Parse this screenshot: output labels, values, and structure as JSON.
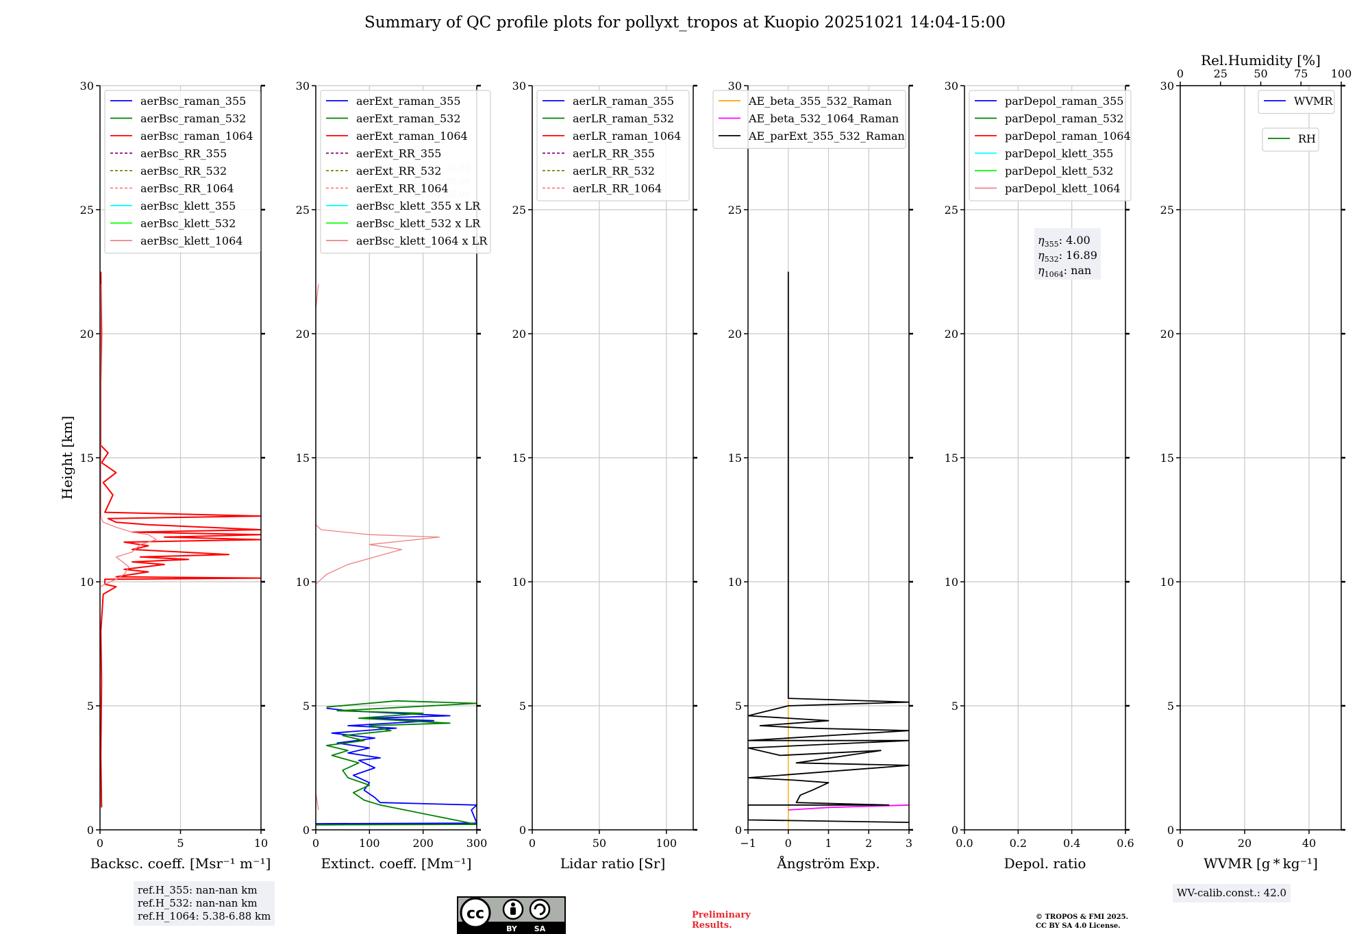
{
  "title": "Summary of QC profile plots for pollyxt_tropos at Kuopio 20251021 14:04-15:00",
  "ylabel": "Height [km]",
  "footer": {
    "ref_heights": [
      "ref.H_355: nan-nan km",
      "ref.H_532: nan-nan km",
      "ref.H_1064: 5.38-6.88 km"
    ],
    "wv_calib": "WV-calib.const.: 42.0",
    "preliminary": [
      "Preliminary",
      "Results."
    ],
    "copyright": [
      "© TROPOS & FMI 2025.",
      "CC BY SA 4.0 License."
    ],
    "cc_badge": {
      "cc": "cc",
      "by": "BY",
      "sa": "SA"
    }
  },
  "colors": {
    "blue": "#0000ff",
    "green": "#008000",
    "red": "#ff0000",
    "purple": "#800080",
    "olive": "#808000",
    "salmon": "#fa8072",
    "cyan": "#00ffff",
    "lime": "#00ff00",
    "lightcoral": "#f08080",
    "orange": "#ffa500",
    "magenta": "#ff00ff",
    "black": "#000000"
  },
  "chart_data": [
    {
      "id": "bsc",
      "type": "line",
      "xlabel": "Backsc. coeff. [Msr⁻¹ m⁻¹]",
      "xlim": [
        0,
        10
      ],
      "xticks": [
        0,
        5,
        10
      ],
      "ylim": [
        0,
        30
      ],
      "yticks": [
        0,
        5,
        10,
        15,
        20,
        25,
        30
      ],
      "legend": [
        {
          "label": "aerBsc_raman_355",
          "color": "blue",
          "dash": false
        },
        {
          "label": "aerBsc_raman_532",
          "color": "green",
          "dash": false
        },
        {
          "label": "aerBsc_raman_1064",
          "color": "red",
          "dash": false
        },
        {
          "label": "aerBsc_RR_355",
          "color": "purple",
          "dash": true
        },
        {
          "label": "aerBsc_RR_532",
          "color": "olive",
          "dash": true
        },
        {
          "label": "aerBsc_RR_1064",
          "color": "salmon",
          "dash": true
        },
        {
          "label": "aerBsc_klett_355",
          "color": "cyan",
          "dash": false
        },
        {
          "label": "aerBsc_klett_532",
          "color": "lime",
          "dash": false
        },
        {
          "label": "aerBsc_klett_1064",
          "color": "lightcoral",
          "dash": false
        }
      ],
      "series": [
        {
          "name": "aerBsc_raman_1064",
          "color": "red",
          "width": 2,
          "points": [
            [
              0.1,
              0.9
            ],
            [
              0.05,
              3
            ],
            [
              0.1,
              6
            ],
            [
              0.05,
              8
            ],
            [
              0.2,
              9.5
            ],
            [
              1,
              9.8
            ],
            [
              0.3,
              9.9
            ],
            [
              0.3,
              10.1
            ],
            [
              10,
              10.15
            ],
            [
              1,
              10.2
            ],
            [
              3,
              10.4
            ],
            [
              1.5,
              10.5
            ],
            [
              4,
              10.7
            ],
            [
              2,
              10.8
            ],
            [
              5.5,
              10.9
            ],
            [
              2.5,
              11
            ],
            [
              8,
              11.1
            ],
            [
              2,
              11.3
            ],
            [
              3,
              11.45
            ],
            [
              1.5,
              11.6
            ],
            [
              10,
              11.7
            ],
            [
              4,
              11.8
            ],
            [
              10,
              11.9
            ],
            [
              2,
              12
            ],
            [
              10,
              12.1
            ],
            [
              3,
              12.3
            ],
            [
              1,
              12.4
            ],
            [
              0.5,
              12.55
            ],
            [
              10,
              12.65
            ],
            [
              0.3,
              12.8
            ],
            [
              0.8,
              13.5
            ],
            [
              0.2,
              14
            ],
            [
              1,
              14.4
            ],
            [
              0.1,
              14.8
            ],
            [
              0.5,
              15.2
            ],
            [
              0.05,
              15.5
            ],
            [
              0.05,
              18
            ],
            [
              0.1,
              20
            ],
            [
              0.05,
              22.5
            ]
          ]
        },
        {
          "name": "aerBsc_klett_1064",
          "color": "lightcoral",
          "width": 1.3,
          "points": [
            [
              0.05,
              9.8
            ],
            [
              0.3,
              9.9
            ],
            [
              1,
              10.1
            ],
            [
              1.5,
              10.3
            ],
            [
              1.8,
              10.6
            ],
            [
              1,
              11
            ],
            [
              2,
              11.2
            ],
            [
              2.5,
              11.5
            ],
            [
              3.5,
              11.7
            ],
            [
              3,
              11.9
            ],
            [
              2,
              12
            ],
            [
              1,
              12.2
            ],
            [
              0.2,
              12.4
            ],
            [
              0.05,
              12.6
            ],
            [
              0.05,
              22
            ]
          ]
        }
      ]
    },
    {
      "id": "ext",
      "type": "line",
      "xlabel": "Extinct. coeff. [Mm⁻¹]",
      "xlim": [
        0,
        300
      ],
      "xticks": [
        0,
        100,
        200,
        300
      ],
      "ylim": [
        0,
        30
      ],
      "yticks": [
        0,
        5,
        10,
        15,
        20,
        25,
        30
      ],
      "legend": [
        {
          "label": "aerExt_raman_355",
          "color": "blue",
          "dash": false
        },
        {
          "label": "aerExt_raman_532",
          "color": "green",
          "dash": false
        },
        {
          "label": "aerExt_raman_1064",
          "color": "red",
          "dash": false
        },
        {
          "label": "aerExt_RR_355",
          "color": "purple",
          "dash": true
        },
        {
          "label": "aerExt_RR_532",
          "color": "olive",
          "dash": true
        },
        {
          "label": "aerExt_RR_1064",
          "color": "salmon",
          "dash": true
        },
        {
          "label": "aerBsc_klett_355 x LR",
          "color": "cyan",
          "dash": false
        },
        {
          "label": "aerBsc_klett_532 x LR",
          "color": "lime",
          "dash": false
        },
        {
          "label": "aerBsc_klett_1064 x LR",
          "color": "lightcoral",
          "dash": false
        }
      ],
      "faint_labels": [
        "LR355: 50.00",
        "LR532: 50.00",
        "LR1064: 50.00"
      ],
      "series": [
        {
          "name": "aerExt_raman_355",
          "color": "blue",
          "width": 1.8,
          "points": [
            [
              300,
              0.22
            ],
            [
              0,
              0.25
            ],
            [
              300,
              0.27
            ],
            [
              290,
              0.8
            ],
            [
              300,
              1
            ],
            [
              120,
              1.1
            ],
            [
              110,
              1.3
            ],
            [
              90,
              1.6
            ],
            [
              100,
              1.9
            ],
            [
              70,
              2.2
            ],
            [
              110,
              2.5
            ],
            [
              80,
              2.8
            ],
            [
              120,
              2.9
            ],
            [
              60,
              3.1
            ],
            [
              100,
              3.3
            ],
            [
              40,
              3.5
            ],
            [
              110,
              3.7
            ],
            [
              30,
              3.9
            ],
            [
              150,
              4.1
            ],
            [
              60,
              4.2
            ],
            [
              220,
              4.4
            ],
            [
              100,
              4.5
            ],
            [
              250,
              4.6
            ],
            [
              150,
              4.7
            ],
            [
              60,
              4.8
            ],
            [
              20,
              4.9
            ]
          ]
        },
        {
          "name": "aerExt_raman_532",
          "color": "green",
          "width": 1.8,
          "points": [
            [
              0,
              0.2
            ],
            [
              300,
              0.22
            ],
            [
              120,
              1
            ],
            [
              90,
              1.2
            ],
            [
              70,
              1.5
            ],
            [
              100,
              1.8
            ],
            [
              60,
              2.1
            ],
            [
              50,
              2.4
            ],
            [
              80,
              2.7
            ],
            [
              30,
              3
            ],
            [
              60,
              3.2
            ],
            [
              20,
              3.4
            ],
            [
              90,
              3.6
            ],
            [
              50,
              3.8
            ],
            [
              140,
              4
            ],
            [
              100,
              4.2
            ],
            [
              250,
              4.3
            ],
            [
              80,
              4.5
            ],
            [
              200,
              4.7
            ],
            [
              40,
              4.8
            ],
            [
              300,
              5.1
            ],
            [
              150,
              5.2
            ],
            [
              20,
              4.95
            ]
          ]
        },
        {
          "name": "aerBsc_klett_1064 x LR",
          "color": "lightcoral",
          "width": 1.3,
          "points": [
            [
              5,
              0.8
            ],
            [
              0,
              1.5
            ],
            [
              0,
              9.9
            ],
            [
              20,
              10.3
            ],
            [
              60,
              10.7
            ],
            [
              110,
              11
            ],
            [
              160,
              11.3
            ],
            [
              100,
              11.5
            ],
            [
              230,
              11.8
            ],
            [
              100,
              11.9
            ],
            [
              10,
              12.1
            ],
            [
              0,
              12.3
            ],
            [
              0,
              21
            ],
            [
              5,
              22
            ]
          ]
        }
      ]
    },
    {
      "id": "lr",
      "type": "line",
      "xlabel": "Lidar ratio [Sr]",
      "xlim": [
        0,
        120
      ],
      "xticks": [
        0,
        50,
        100
      ],
      "ylim": [
        0,
        30
      ],
      "yticks": [
        0,
        5,
        10,
        15,
        20,
        25,
        30
      ],
      "legend": [
        {
          "label": "aerLR_raman_355",
          "color": "blue",
          "dash": false
        },
        {
          "label": "aerLR_raman_532",
          "color": "green",
          "dash": false
        },
        {
          "label": "aerLR_raman_1064",
          "color": "red",
          "dash": false
        },
        {
          "label": "aerLR_RR_355",
          "color": "purple",
          "dash": true
        },
        {
          "label": "aerLR_RR_532",
          "color": "olive",
          "dash": true
        },
        {
          "label": "aerLR_RR_1064",
          "color": "salmon",
          "dash": true
        }
      ],
      "series": []
    },
    {
      "id": "ae",
      "type": "line",
      "xlabel": "Ångström Exp.",
      "xlim": [
        -1,
        3
      ],
      "xticks": [
        -1,
        0,
        1,
        2,
        3
      ],
      "ylim": [
        0,
        30
      ],
      "yticks": [
        0,
        5,
        10,
        15,
        20,
        25,
        30
      ],
      "legend": [
        {
          "label": "AE_beta_355_532_Raman",
          "color": "orange",
          "dash": false
        },
        {
          "label": "AE_beta_532_1064_Raman",
          "color": "magenta",
          "dash": false
        },
        {
          "label": "AE_parExt_355_532_Raman",
          "color": "black",
          "dash": false
        }
      ],
      "series": [
        {
          "name": "AE_beta_355_532_Raman",
          "color": "orange",
          "width": 1.3,
          "points": [
            [
              0,
              0
            ],
            [
              0,
              5.2
            ]
          ]
        },
        {
          "name": "AE_beta_532_1064_Raman",
          "color": "magenta",
          "width": 1.8,
          "points": [
            [
              0,
              0.8
            ],
            [
              1,
              0.9
            ],
            [
              3,
              1
            ]
          ]
        },
        {
          "name": "AE_parExt_355_532_Raman",
          "color": "black",
          "width": 1.8,
          "points": [
            [
              3,
              0.3
            ],
            [
              -1,
              0.4
            ],
            [
              -1,
              1.0
            ],
            [
              2.5,
              1.0
            ],
            [
              0.2,
              1.1
            ],
            [
              0.3,
              1.4
            ],
            [
              0.6,
              1.6
            ],
            [
              1,
              1.9
            ],
            [
              0.2,
              2.0
            ],
            [
              -1,
              2.1
            ],
            [
              3,
              2.6
            ],
            [
              0.2,
              2.7
            ],
            [
              2.3,
              3.2
            ],
            [
              -0.2,
              3.0
            ],
            [
              -1,
              3.3
            ],
            [
              3,
              3.6
            ],
            [
              -1,
              3.6
            ],
            [
              3,
              4.0
            ],
            [
              0.5,
              4.1
            ],
            [
              -0.7,
              4.2
            ],
            [
              1,
              4.4
            ],
            [
              -1,
              4.6
            ],
            [
              0,
              5.0
            ],
            [
              3,
              5.15
            ],
            [
              0,
              5.3
            ],
            [
              0,
              22.5
            ]
          ]
        }
      ]
    },
    {
      "id": "depol",
      "type": "line",
      "xlabel": "Depol. ratio",
      "xlim": [
        0,
        0.6
      ],
      "xticks": [
        "0.0",
        "0.2",
        "0.4",
        "0.6"
      ],
      "ylim": [
        0,
        30
      ],
      "yticks": [
        0,
        5,
        10,
        15,
        20,
        25,
        30
      ],
      "legend": [
        {
          "label": "parDepol_raman_355",
          "color": "blue",
          "dash": false
        },
        {
          "label": "parDepol_raman_532",
          "color": "green",
          "dash": false
        },
        {
          "label": "parDepol_raman_1064",
          "color": "red",
          "dash": false
        },
        {
          "label": "parDepol_klett_355",
          "color": "cyan",
          "dash": false
        },
        {
          "label": "parDepol_klett_532",
          "color": "lime",
          "dash": false
        },
        {
          "label": "parDepol_klett_1064",
          "color": "lightcoral",
          "dash": false
        }
      ],
      "eta": [
        {
          "symbol": "η",
          "sub": "355",
          "value": ": 4.00"
        },
        {
          "symbol": "η",
          "sub": "532",
          "value": ": 16.89"
        },
        {
          "symbol": "η",
          "sub": "1064",
          "value": ": nan"
        }
      ],
      "series": []
    },
    {
      "id": "wv",
      "type": "line",
      "xlabel": "WVMR [g * kg⁻¹]",
      "xlim": [
        0,
        50
      ],
      "xticks": [
        0,
        20,
        40
      ],
      "ylim": [
        0,
        30
      ],
      "yticks": [
        0,
        5,
        10,
        15,
        20,
        25,
        30
      ],
      "top_xlabel": "Rel.Humidity [%]",
      "top_xticks": [
        0,
        25,
        50,
        75,
        100
      ],
      "legend": [
        {
          "label": "WVMR",
          "color": "blue",
          "dash": false
        }
      ],
      "legend2": [
        {
          "label": "RH",
          "color": "green",
          "dash": false
        }
      ],
      "series": []
    }
  ]
}
